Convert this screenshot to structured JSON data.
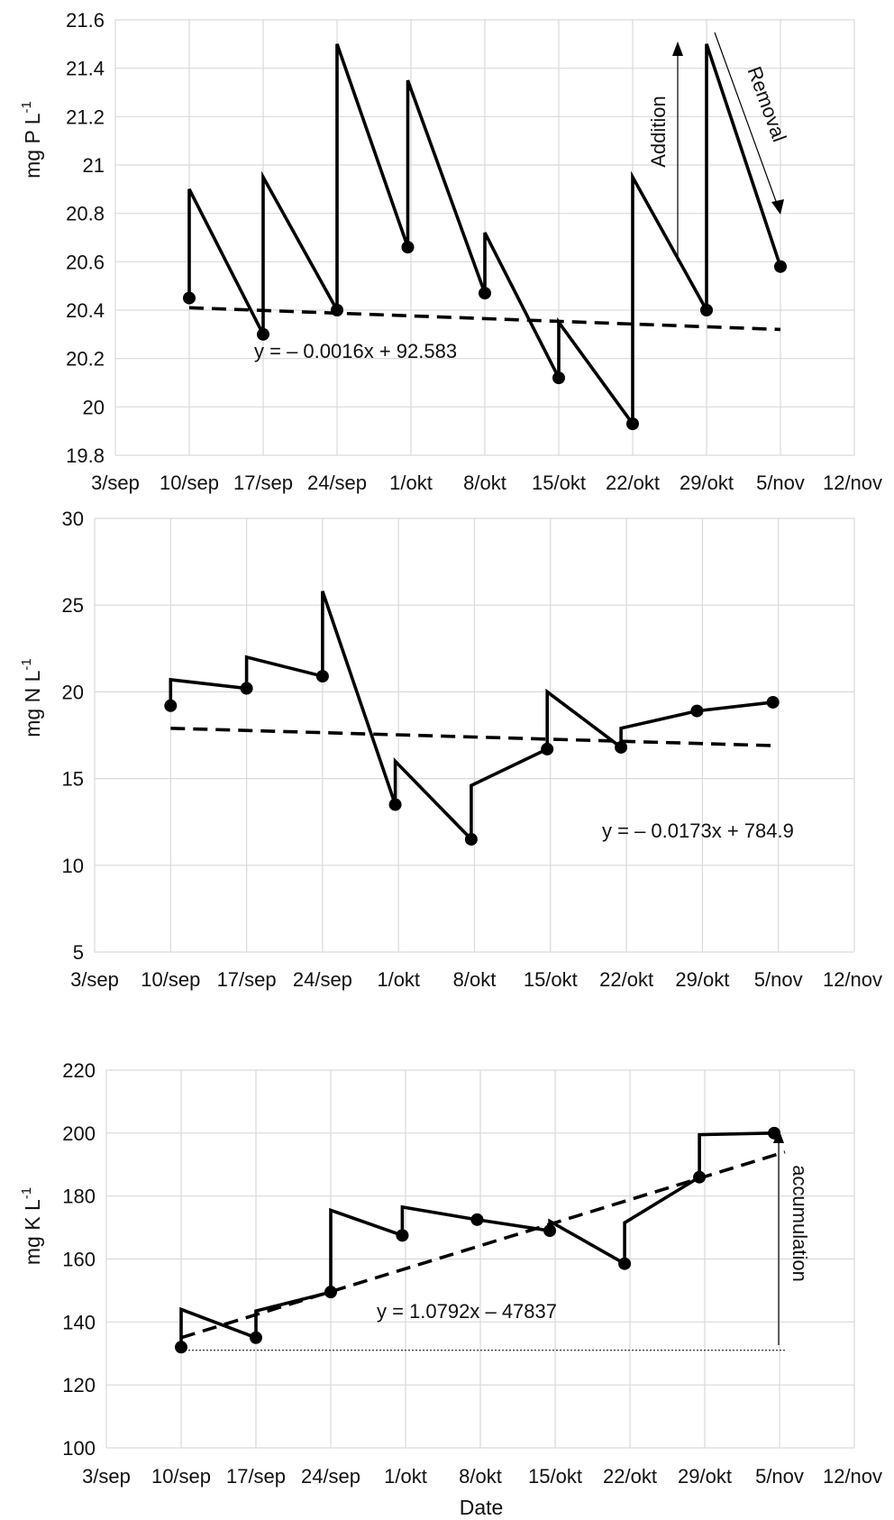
{
  "xlabel": "Date",
  "x_ticks": [
    "3/sep",
    "10/sep",
    "17/sep",
    "24/sep",
    "1/okt",
    "8/okt",
    "15/okt",
    "22/okt",
    "29/okt",
    "5/nov",
    "12/nov"
  ],
  "chart_data": [
    {
      "type": "line",
      "ylabel": "mg P L",
      "ylabel_sup": "-1",
      "ylim": [
        19.8,
        21.6
      ],
      "yticks": [
        "21.6",
        "21.4",
        "21.2",
        "21",
        "20.8",
        "20.6",
        "20.4",
        "20.2",
        "20",
        "19.8"
      ],
      "x_axis_unit": "days after 3/sep",
      "series": [
        {
          "points": [
            [
              7,
              20.45
            ],
            [
              7,
              20.9
            ],
            [
              14,
              20.3
            ],
            [
              14,
              20.95
            ],
            [
              21,
              20.4
            ],
            [
              21,
              21.5
            ],
            [
              27.7,
              20.66
            ],
            [
              27.7,
              21.35
            ],
            [
              35,
              20.47
            ],
            [
              35,
              20.72
            ],
            [
              42,
              20.12
            ],
            [
              42,
              20.35
            ],
            [
              49,
              19.93
            ],
            [
              49,
              20.95
            ],
            [
              56,
              20.4
            ],
            [
              56,
              21.5
            ],
            [
              63,
              20.58
            ]
          ],
          "markers": [
            [
              7,
              20.45
            ],
            [
              14,
              20.3
            ],
            [
              21,
              20.4
            ],
            [
              27.7,
              20.66
            ],
            [
              35,
              20.47
            ],
            [
              42,
              20.12
            ],
            [
              49,
              19.93
            ],
            [
              56,
              20.4
            ],
            [
              63,
              20.58
            ]
          ]
        }
      ],
      "trend": {
        "from": [
          7,
          20.41
        ],
        "to": [
          63,
          20.32
        ],
        "equation": "y =  – 0.0016x + 92.583"
      },
      "annotations": {
        "addition": "Addition",
        "removal": "Removal"
      },
      "grid": true
    },
    {
      "type": "line",
      "ylabel": "mg N L",
      "ylabel_sup": "-1",
      "ylim": [
        5,
        30
      ],
      "yticks": [
        "30",
        "25",
        "20",
        "15",
        "10",
        "5"
      ],
      "series": [
        {
          "points": [
            [
              0,
              19.2
            ],
            [
              0,
              20.7
            ],
            [
              7,
              20.2
            ],
            [
              7,
              22.0
            ],
            [
              14,
              20.9
            ],
            [
              14,
              25.8
            ],
            [
              20.7,
              13.5
            ],
            [
              20.7,
              16.0
            ],
            [
              27.7,
              11.5
            ],
            [
              27.7,
              14.6
            ],
            [
              34.7,
              16.7
            ],
            [
              34.7,
              20.0
            ],
            [
              41.5,
              16.8
            ],
            [
              41.5,
              17.9
            ],
            [
              48.5,
              18.9
            ],
            [
              55.5,
              19.4
            ]
          ],
          "markers": [
            [
              0,
              19.2
            ],
            [
              7,
              20.2
            ],
            [
              14,
              20.9
            ],
            [
              20.7,
              13.5
            ],
            [
              27.7,
              11.5
            ],
            [
              34.7,
              16.7
            ],
            [
              41.5,
              16.8
            ],
            [
              48.5,
              18.9
            ],
            [
              55.5,
              19.4
            ]
          ]
        }
      ],
      "trend": {
        "from": [
          0,
          17.9
        ],
        "to": [
          55.5,
          16.9
        ],
        "equation": "y = – 0.0173x + 784.9"
      },
      "grid": true
    },
    {
      "type": "line",
      "ylabel": "mg K L",
      "ylabel_sup": "-1",
      "ylim": [
        100,
        220
      ],
      "yticks": [
        "220",
        "200",
        "180",
        "160",
        "140",
        "120",
        "100"
      ],
      "series": [
        {
          "points": [
            [
              7,
              132
            ],
            [
              7,
              144
            ],
            [
              14,
              135
            ],
            [
              14,
              143.5
            ],
            [
              21,
              149.5
            ],
            [
              21,
              175.5
            ],
            [
              27.7,
              167.5
            ],
            [
              27.7,
              176.5
            ],
            [
              34.7,
              172.5
            ],
            [
              41.5,
              169
            ],
            [
              41.5,
              172
            ],
            [
              48.5,
              158.5
            ],
            [
              48.5,
              171.5
            ],
            [
              55.5,
              186
            ],
            [
              55.5,
              199.5
            ],
            [
              62.5,
              200
            ]
          ],
          "markers": [
            [
              7,
              132
            ],
            [
              14,
              135
            ],
            [
              21,
              149.5
            ],
            [
              27.7,
              167.5
            ],
            [
              34.7,
              172.5
            ],
            [
              41.5,
              169
            ],
            [
              48.5,
              158.5
            ],
            [
              55.5,
              186
            ],
            [
              62.5,
              200
            ]
          ]
        }
      ],
      "trend": {
        "from": [
          7,
          135
        ],
        "to": [
          63.5,
          194
        ],
        "equation": "y = 1.0792x – 47837"
      },
      "baseline": {
        "from": [
          7,
          131
        ],
        "to": [
          63.5,
          131
        ]
      },
      "annotations": {
        "accumulation": "accumulation"
      },
      "grid": true
    }
  ]
}
